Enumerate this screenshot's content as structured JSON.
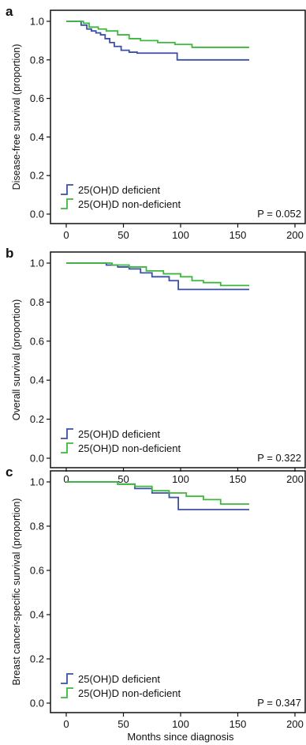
{
  "colors": {
    "deficient": "#3b4fa8",
    "non_deficient": "#3cb83c",
    "axis": "#111111"
  },
  "xlabel": "Months since diagnosis",
  "chart_data": [
    {
      "panel": "a",
      "type": "line",
      "ylabel": "Disease-free survival (proportion)",
      "xlim": [
        0,
        200
      ],
      "ylim": [
        0,
        1.0
      ],
      "xticks": [
        "0",
        "50",
        "100",
        "150",
        "200"
      ],
      "yticks": [
        "0.0",
        "0.2",
        "0.4",
        "0.6",
        "0.8",
        "1.0"
      ],
      "p_value": "P = 0.052",
      "legend_position": "bottom-left",
      "series": [
        {
          "name": "25(OH)D deficient",
          "color": "#3b4fa8",
          "x": [
            0,
            8,
            13,
            18,
            22,
            26,
            30,
            34,
            38,
            42,
            48,
            55,
            62,
            97,
            160
          ],
          "y": [
            1.0,
            1.0,
            0.98,
            0.96,
            0.95,
            0.94,
            0.93,
            0.91,
            0.89,
            0.87,
            0.85,
            0.84,
            0.835,
            0.8,
            0.8
          ]
        },
        {
          "name": "25(OH)D non-deficient",
          "color": "#3cb83c",
          "x": [
            0,
            10,
            15,
            20,
            28,
            35,
            45,
            55,
            65,
            80,
            95,
            110,
            160
          ],
          "y": [
            1.0,
            1.0,
            0.99,
            0.97,
            0.96,
            0.95,
            0.93,
            0.91,
            0.9,
            0.89,
            0.88,
            0.865,
            0.865
          ]
        }
      ]
    },
    {
      "panel": "b",
      "type": "line",
      "ylabel": "Overall survival (proportion)",
      "xlim": [
        0,
        200
      ],
      "ylim": [
        0,
        1.0
      ],
      "xticks": [
        "0",
        "50",
        "100",
        "150",
        "200"
      ],
      "yticks": [
        "0.0",
        "0.2",
        "0.4",
        "0.6",
        "0.8",
        "1.0"
      ],
      "p_value": "P = 0.322",
      "legend_position": "bottom-left",
      "series": [
        {
          "name": "25(OH)D deficient",
          "color": "#3b4fa8",
          "x": [
            0,
            30,
            35,
            45,
            55,
            65,
            75,
            90,
            98,
            160
          ],
          "y": [
            1.0,
            1.0,
            0.99,
            0.98,
            0.97,
            0.95,
            0.93,
            0.91,
            0.865,
            0.865
          ]
        },
        {
          "name": "25(OH)D non-deficient",
          "color": "#3cb83c",
          "x": [
            0,
            25,
            40,
            55,
            70,
            85,
            100,
            110,
            120,
            135,
            160
          ],
          "y": [
            1.0,
            1.0,
            0.99,
            0.98,
            0.96,
            0.945,
            0.93,
            0.91,
            0.9,
            0.885,
            0.885
          ]
        }
      ]
    },
    {
      "panel": "c",
      "type": "line",
      "ylabel": "Breast cancer-specific survival (proportion)",
      "xlim": [
        0,
        200
      ],
      "ylim": [
        0,
        1.0
      ],
      "xticks": [
        "0",
        "50",
        "100",
        "150",
        "200"
      ],
      "yticks": [
        "0.0",
        "0.2",
        "0.4",
        "0.6",
        "0.8",
        "1.0"
      ],
      "p_value": "P = 0.347",
      "legend_position": "bottom-left",
      "series": [
        {
          "name": "25(OH)D deficient",
          "color": "#3b4fa8",
          "x": [
            0,
            32,
            45,
            60,
            75,
            90,
            98,
            160
          ],
          "y": [
            1.0,
            1.0,
            0.99,
            0.97,
            0.95,
            0.93,
            0.875,
            0.875
          ]
        },
        {
          "name": "25(OH)D non-deficient",
          "color": "#3cb83c",
          "x": [
            0,
            25,
            45,
            60,
            75,
            90,
            105,
            120,
            135,
            160
          ],
          "y": [
            1.0,
            1.0,
            0.99,
            0.98,
            0.96,
            0.95,
            0.935,
            0.92,
            0.9,
            0.9
          ]
        }
      ]
    }
  ]
}
